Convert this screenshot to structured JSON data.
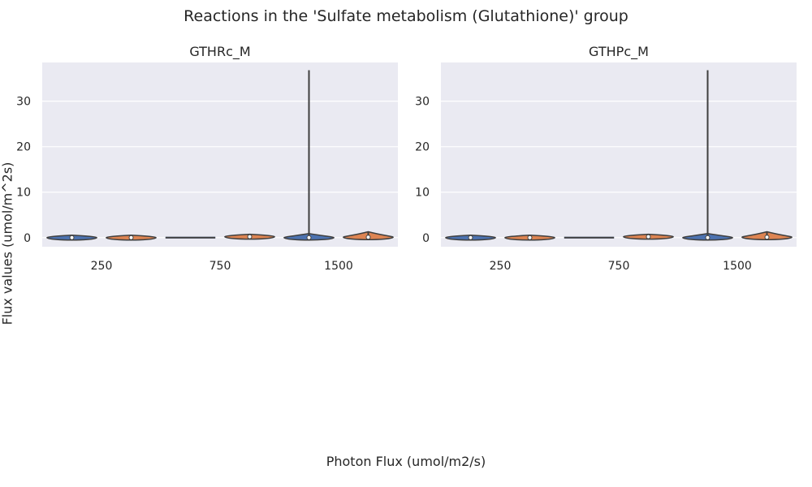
{
  "figure": {
    "title": "Reactions in the 'Sulfate metabolism (Glutathione)' group",
    "xlabel": "Photon Flux (umol/m2/s)",
    "ylabel": "Flux values (umol/m^2s)"
  },
  "colors": {
    "panel_background": "#eaeaf2",
    "series_blue": "#4c72b0",
    "series_orange": "#dd8452",
    "outline": "#3f3f3f"
  },
  "chart_data": [
    {
      "type": "violin",
      "title": "GTHRc_M",
      "categories": [
        "250",
        "750",
        "1500"
      ],
      "ylim": [
        -2.0,
        38.5
      ],
      "yticks": [
        0,
        10,
        20,
        30
      ],
      "grid": true,
      "series": [
        {
          "values": [
            {
              "min": -0.1,
              "max": 0.5,
              "median": 0.0
            },
            {
              "min": 0.0,
              "max": 0.0,
              "median": 0.0
            },
            {
              "min": -0.5,
              "max": 36.8,
              "median": 0.0
            }
          ]
        },
        {
          "values": [
            {
              "min": -0.1,
              "max": 0.3,
              "median": 0.0
            },
            {
              "min": 0.0,
              "max": 0.5,
              "median": 0.2
            },
            {
              "min": -0.1,
              "max": 1.3,
              "median": 0.1
            }
          ]
        }
      ]
    },
    {
      "type": "violin",
      "title": "GTHPc_M",
      "categories": [
        "250",
        "750",
        "1500"
      ],
      "ylim": [
        -2.0,
        38.5
      ],
      "yticks": [
        0,
        10,
        20,
        30
      ],
      "grid": true,
      "series": [
        {
          "values": [
            {
              "min": -0.1,
              "max": 0.5,
              "median": 0.0
            },
            {
              "min": 0.0,
              "max": 0.0,
              "median": 0.0
            },
            {
              "min": -0.5,
              "max": 36.8,
              "median": 0.0
            }
          ]
        },
        {
          "values": [
            {
              "min": -0.1,
              "max": 0.3,
              "median": 0.0
            },
            {
              "min": 0.0,
              "max": 0.5,
              "median": 0.2
            },
            {
              "min": -0.1,
              "max": 1.3,
              "median": 0.1
            }
          ]
        }
      ]
    }
  ]
}
